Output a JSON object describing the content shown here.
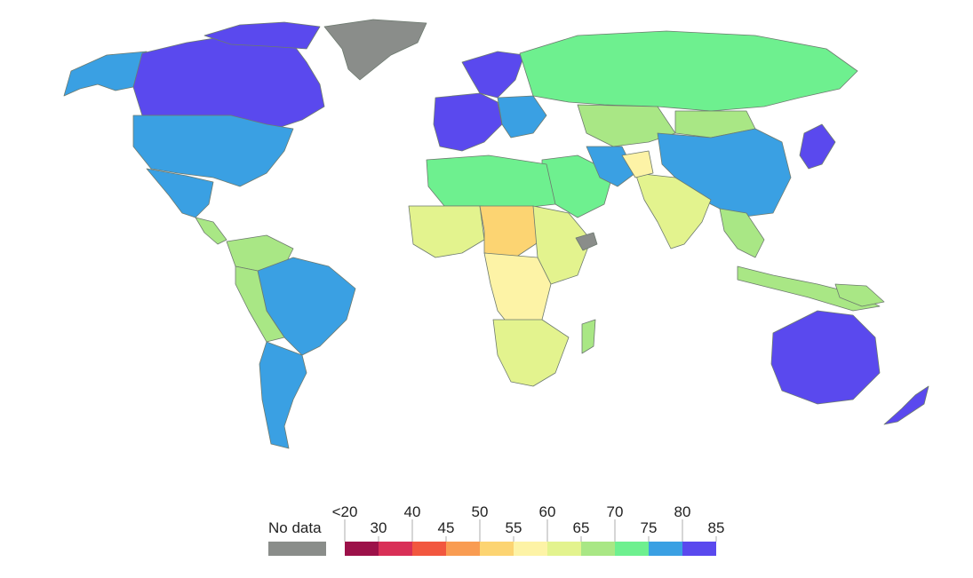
{
  "legend": {
    "no_data_label": "No data",
    "no_data_color": "#8a8d8a",
    "bins": [
      {
        "label": "<20",
        "color": "#9c1149"
      },
      {
        "label": "30",
        "color": "#d92f57"
      },
      {
        "label": "40",
        "color": "#f2573f"
      },
      {
        "label": "45",
        "color": "#f99c52"
      },
      {
        "label": "50",
        "color": "#fcd472"
      },
      {
        "label": "55",
        "color": "#fdf3a6"
      },
      {
        "label": "60",
        "color": "#e3f38e"
      },
      {
        "label": "65",
        "color": "#a9e785"
      },
      {
        "label": "70",
        "color": "#6ef08f"
      },
      {
        "label": "75",
        "color": "#3aa0e3"
      },
      {
        "label": "80",
        "color": "#5a49ee"
      },
      {
        "label": "85",
        "color": "#5a49ee"
      }
    ]
  },
  "colors": {
    "outline": "#6d7a6f",
    "very_high": "#5a49ee",
    "high": "#3aa0e3",
    "upper_mid": "#6ef08f",
    "mid": "#a9e785",
    "lower_mid": "#e3f38e",
    "low": "#fdf3a6",
    "lower": "#fcd472",
    "lowest_shown": "#f5c36f",
    "no_data": "#8a8d8a"
  }
}
